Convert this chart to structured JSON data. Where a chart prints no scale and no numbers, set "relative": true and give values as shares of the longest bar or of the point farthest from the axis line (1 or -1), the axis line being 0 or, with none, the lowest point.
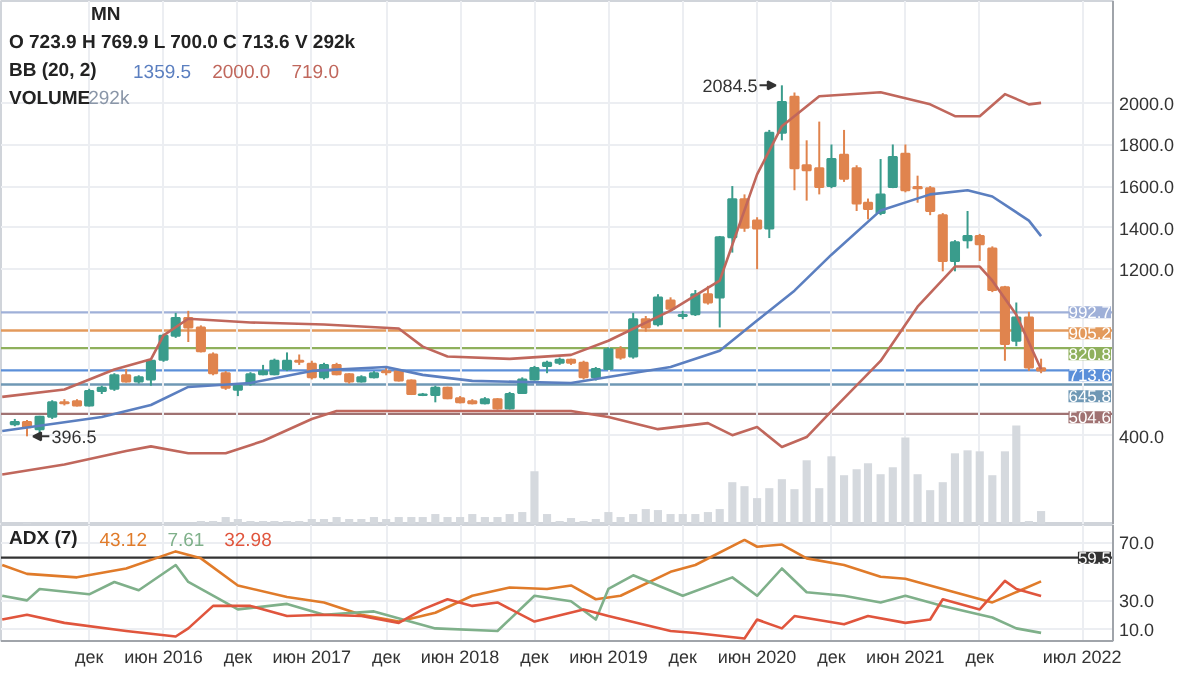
{
  "chart_data": [
    {
      "type": "candlestick",
      "tick_labels": "y",
      "grid": true,
      "annotations": [
        "MN",
        "O 723.9 H 769.9 L 700.0 C 713.6 V 292k",
        "BB (20, 2)",
        "1359.5",
        "2000.0",
        "719.0",
        {
          "text": "2084.5",
          "x": "2020-08",
          "y": 2084.5
        },
        {
          "text": "396.5",
          "x": "2015-07",
          "y": 396.5
        }
      ],
      "x": [
        "2015-06",
        "2015-07",
        "2015-08",
        "2015-09",
        "2015-10",
        "2015-11",
        "2015-12",
        "2016-01",
        "2016-02",
        "2016-03",
        "2016-04",
        "2016-05",
        "2016-06",
        "2016-07",
        "2016-08",
        "2016-09",
        "2016-10",
        "2016-11",
        "2016-12",
        "2017-01",
        "2017-02",
        "2017-03",
        "2017-04",
        "2017-05",
        "2017-06",
        "2017-07",
        "2017-08",
        "2017-09",
        "2017-10",
        "2017-11",
        "2017-12",
        "2018-01",
        "2018-02",
        "2018-03",
        "2018-04",
        "2018-05",
        "2018-06",
        "2018-07",
        "2018-08",
        "2018-09",
        "2018-10",
        "2018-11",
        "2018-12",
        "2019-01",
        "2019-02",
        "2019-03",
        "2019-04",
        "2019-05",
        "2019-06",
        "2019-07",
        "2019-08",
        "2019-09",
        "2019-10",
        "2019-11",
        "2019-12",
        "2020-01",
        "2020-02",
        "2020-03",
        "2020-04",
        "2020-05",
        "2020-06",
        "2020-07",
        "2020-08",
        "2020-09",
        "2020-10",
        "2020-11",
        "2020-12",
        "2021-01",
        "2021-02",
        "2021-03",
        "2021-04",
        "2021-05",
        "2021-06",
        "2021-07",
        "2021-08",
        "2021-09",
        "2021-10",
        "2021-11",
        "2021-12",
        "2022-01",
        "2022-02",
        "2022-03",
        "2022-04",
        "2022-05"
      ],
      "ohlc": [
        [
          455,
          480,
          445,
          465
        ],
        [
          465,
          475,
          396.5,
          440
        ],
        [
          430,
          495,
          410,
          490
        ],
        [
          490,
          570,
          480,
          560
        ],
        [
          560,
          575,
          545,
          555
        ],
        [
          565,
          575,
          540,
          545
        ],
        [
          545,
          625,
          540,
          615
        ],
        [
          615,
          640,
          600,
          630
        ],
        [
          625,
          700,
          615,
          690
        ],
        [
          690,
          720,
          655,
          660
        ],
        [
          660,
          690,
          650,
          680
        ],
        [
          670,
          770,
          640,
          760
        ],
        [
          765,
          890,
          755,
          880
        ],
        [
          880,
          990,
          870,
          965
        ],
        [
          965,
          1000,
          850,
          920
        ],
        [
          920,
          930,
          800,
          805
        ],
        [
          790,
          800,
          690,
          700
        ],
        [
          700,
          710,
          620,
          630
        ],
        [
          620,
          650,
          590,
          640
        ],
        [
          650,
          705,
          640,
          695
        ],
        [
          695,
          740,
          690,
          710
        ],
        [
          695,
          770,
          690,
          760
        ],
        [
          720,
          800,
          710,
          760
        ],
        [
          760,
          790,
          740,
          755
        ],
        [
          745,
          760,
          670,
          680
        ],
        [
          680,
          750,
          670,
          740
        ],
        [
          740,
          750,
          690,
          695
        ],
        [
          695,
          700,
          650,
          660
        ],
        [
          660,
          690,
          655,
          680
        ],
        [
          680,
          710,
          675,
          700
        ],
        [
          710,
          730,
          690,
          705
        ],
        [
          710,
          715,
          660,
          665
        ],
        [
          665,
          670,
          595,
          600
        ],
        [
          595,
          605,
          590,
          598
        ],
        [
          595,
          640,
          560,
          630
        ],
        [
          630,
          635,
          575,
          580
        ],
        [
          580,
          590,
          555,
          560
        ],
        [
          565,
          575,
          550,
          555
        ],
        [
          555,
          585,
          550,
          575
        ],
        [
          575,
          580,
          525,
          530
        ],
        [
          530,
          610,
          525,
          600
        ],
        [
          605,
          680,
          600,
          670
        ],
        [
          670,
          735,
          665,
          725
        ],
        [
          735,
          760,
          700,
          750
        ],
        [
          750,
          775,
          740,
          765
        ],
        [
          765,
          770,
          740,
          750
        ],
        [
          750,
          760,
          670,
          680
        ],
        [
          680,
          730,
          665,
          720
        ],
        [
          720,
          825,
          715,
          815
        ],
        [
          815,
          830,
          765,
          775
        ],
        [
          780,
          990,
          770,
          960
        ],
        [
          960,
          975,
          900,
          920
        ],
        [
          936,
          1080,
          925,
          1064
        ],
        [
          1050,
          1065,
          1000,
          1010
        ],
        [
          975,
          1000,
          960,
          980
        ],
        [
          984,
          1100,
          975,
          1080
        ],
        [
          1080,
          1120,
          1030,
          1040
        ],
        [
          1064,
          1360,
          920,
          1354
        ],
        [
          1354,
          1600,
          1280,
          1537
        ],
        [
          1537,
          1560,
          1380,
          1400
        ],
        [
          1434,
          1450,
          1200,
          1396
        ],
        [
          1396,
          1870,
          1350,
          1856
        ],
        [
          1856,
          2084.5,
          1820,
          2004
        ],
        [
          2030,
          2050,
          1580,
          1686
        ],
        [
          1700,
          1820,
          1530,
          1676
        ],
        [
          1686,
          1910,
          1560,
          1596
        ],
        [
          1600,
          1800,
          1590,
          1730
        ],
        [
          1750,
          1870,
          1620,
          1635
        ],
        [
          1686,
          1700,
          1480,
          1516
        ],
        [
          1520,
          1540,
          1440,
          1490
        ],
        [
          1470,
          1730,
          1460,
          1560
        ],
        [
          1595,
          1800,
          1590,
          1740
        ],
        [
          1756,
          1800,
          1570,
          1580
        ],
        [
          1595,
          1650,
          1520,
          1590
        ],
        [
          1590,
          1600,
          1460,
          1480
        ],
        [
          1460,
          1470,
          1190,
          1240
        ],
        [
          1240,
          1340,
          1190,
          1330
        ],
        [
          1340,
          1480,
          1300,
          1360
        ],
        [
          1360,
          1370,
          1240,
          1320
        ],
        [
          1300,
          1310,
          1090,
          1100
        ],
        [
          1113,
          1120,
          760,
          840
        ],
        [
          856,
          1040,
          830,
          968
        ],
        [
          968,
          995,
          711,
          727
        ],
        [
          723.9,
          769.9,
          700.0,
          713.6
        ]
      ],
      "colors": [
        "#3a9c8c",
        "#e0844e",
        "#3a9c8c",
        "#3a9c8c",
        "#e0844e",
        "#e0844e",
        "#3a9c8c",
        "#3a9c8c",
        "#3a9c8c",
        "#e0844e",
        "#3a9c8c",
        "#3a9c8c",
        "#3a9c8c",
        "#3a9c8c",
        "#e0844e",
        "#e0844e",
        "#e0844e",
        "#e0844e",
        "#3a9c8c",
        "#3a9c8c",
        "#3a9c8c",
        "#3a9c8c",
        "#3a9c8c",
        "#e0844e",
        "#e0844e",
        "#3a9c8c",
        "#e0844e",
        "#e0844e",
        "#3a9c8c",
        "#3a9c8c",
        "#e0844e",
        "#e0844e",
        "#e0844e",
        "#3a9c8c",
        "#3a9c8c",
        "#e0844e",
        "#e0844e",
        "#e0844e",
        "#3a9c8c",
        "#e0844e",
        "#3a9c8c",
        "#3a9c8c",
        "#3a9c8c",
        "#3a9c8c",
        "#3a9c8c",
        "#e0844e",
        "#e0844e",
        "#3a9c8c",
        "#3a9c8c",
        "#e0844e",
        "#3a9c8c",
        "#e0844e",
        "#3a9c8c",
        "#e0844e",
        "#3a9c8c",
        "#3a9c8c",
        "#e0844e",
        "#3a9c8c",
        "#3a9c8c",
        "#e0844e",
        "#e0844e",
        "#3a9c8c",
        "#3a9c8c",
        "#e0844e",
        "#e0844e",
        "#e0844e",
        "#3a9c8c",
        "#e0844e",
        "#e0844e",
        "#e0844e",
        "#3a9c8c",
        "#3a9c8c",
        "#e0844e",
        "#e0844e",
        "#e0844e",
        "#e0844e",
        "#3a9c8c",
        "#3a9c8c",
        "#e0844e",
        "#e0844e",
        "#e0844e",
        "#3a9c8c",
        "#e0844e",
        "#e0844e"
      ],
      "series": [
        {
          "type": "line",
          "color": "#5b7fc0",
          "x": [
            "2015-05",
            "2016-01",
            "2016-05",
            "2016-08",
            "2017-01",
            "2017-06",
            "2017-12",
            "2018-03",
            "2018-07",
            "2019-03",
            "2019-06",
            "2019-11",
            "2020-03",
            "2020-06",
            "2020-09",
            "2020-12",
            "2021-04",
            "2021-08",
            "2021-11",
            "2022-01",
            "2022-04",
            "2022-05"
          ],
          "values": [
            422,
            489,
            547,
            634,
            653,
            711,
            730,
            692,
            663,
            653,
            682,
            730,
            808,
            953,
            1097,
            1270,
            1483,
            1560,
            1580,
            1550,
            1434,
            1359.5
          ]
        },
        {
          "type": "line",
          "color": "#c0675c",
          "x": [
            "2015-05",
            "2015-10",
            "2016-02",
            "2016-05",
            "2016-06",
            "2016-08",
            "2017-01",
            "2017-07",
            "2018-01",
            "2018-03",
            "2018-05",
            "2018-10",
            "2019-03",
            "2019-06",
            "2019-11",
            "2020-03",
            "2020-06",
            "2020-08",
            "2020-11",
            "2021-04",
            "2021-08",
            "2021-10",
            "2021-12",
            "2022-02",
            "2022-04",
            "2022-05"
          ],
          "values": [
            586,
            622,
            718,
            767,
            882,
            962,
            944,
            934,
            915,
            828,
            780,
            769,
            788,
            856,
            1001,
            1145,
            1656,
            1888,
            2032,
            2051,
            1993,
            1936,
            1936,
            2042,
            1993,
            2000
          ]
        },
        {
          "type": "line",
          "color": "#c0675c",
          "x": [
            "2015-05",
            "2015-10",
            "2016-03",
            "2016-05",
            "2016-08",
            "2016-11",
            "2017-02",
            "2017-06",
            "2017-08",
            "2019-03",
            "2019-06",
            "2019-10",
            "2020-02",
            "2020-04",
            "2020-06",
            "2020-08",
            "2020-10",
            "2020-12",
            "2021-04",
            "2021-07",
            "2021-10",
            "2021-12",
            "2022-01",
            "2022-03",
            "2022-05"
          ],
          "values": [
            213,
            261,
            326,
            348,
            315,
            315,
            374,
            480,
            518,
            518,
            489,
            431,
            460,
            402,
            441,
            345,
            393,
            518,
            759,
            1020,
            1213,
            1213,
            1145,
            981,
            719
          ]
        }
      ],
      "xlim": [
        "2015-04-28",
        "2022-10-25"
      ],
      "xticks": [
        {
          "value": "2015-12",
          "label": null
        },
        {
          "value": "2016-06",
          "label": null
        },
        {
          "value": "2016-12",
          "label": null
        },
        {
          "value": "2017-06",
          "label": null
        },
        {
          "value": "2017-12",
          "label": null
        },
        {
          "value": "2018-06",
          "label": null
        },
        {
          "value": "2018-12",
          "label": null
        },
        {
          "value": "2019-06",
          "label": null
        },
        {
          "value": "2019-12",
          "label": null
        },
        {
          "value": "2020-06",
          "label": null
        },
        {
          "value": "2020-12",
          "label": null
        },
        {
          "value": "2021-06",
          "label": null
        },
        {
          "value": "2021-12",
          "label": null
        },
        {
          "value": "2022-08-10",
          "label": null
        }
      ],
      "ylim": [
        -30,
        2490
      ],
      "yticks": [
        {
          "value": 400,
          "label": "400.0"
        },
        {
          "value": 1200,
          "label": "1200.0"
        },
        {
          "value": 1400,
          "label": "1400.0"
        },
        {
          "value": 1600,
          "label": "1600.0"
        },
        {
          "value": 1800,
          "label": "1800.0"
        },
        {
          "value": 2000,
          "label": "2000.0"
        }
      ],
      "ref_lines": [
        {
          "axis": "y",
          "value": 992.7,
          "label": "992.7",
          "color": "#9fb0d8"
        },
        {
          "axis": "y",
          "value": 905.2,
          "label": "905.2",
          "color": "#e39a5c"
        },
        {
          "axis": "y",
          "value": 820.8,
          "label": "820.8",
          "color": "#8fb05c"
        },
        {
          "axis": "y",
          "value": 713.6,
          "label": "713.6",
          "color": "#5b8fd9"
        },
        {
          "axis": "y",
          "value": 645.8,
          "label": "645.8",
          "color": "#6f98b5"
        },
        {
          "axis": "y",
          "value": 504.6,
          "label": "504.6",
          "color": "#a07272"
        }
      ]
    },
    {
      "type": "bar",
      "relative": true,
      "color": "#d5d9de",
      "tick_labels": false,
      "annotations": [
        "VOLUME",
        "292k"
      ],
      "x": [
        "2015-07",
        "2015-08",
        "2015-09",
        "2015-10",
        "2015-11",
        "2015-12",
        "2016-01",
        "2016-02",
        "2016-03",
        "2016-04",
        "2016-05",
        "2016-06",
        "2016-07",
        "2016-08",
        "2016-09",
        "2016-10",
        "2016-11",
        "2016-12",
        "2017-01",
        "2017-02",
        "2017-03",
        "2017-04",
        "2017-05",
        "2017-06",
        "2017-07",
        "2017-08",
        "2017-09",
        "2017-10",
        "2017-11",
        "2017-12",
        "2018-01",
        "2018-02",
        "2018-03",
        "2018-04",
        "2018-05",
        "2018-06",
        "2018-07",
        "2018-08",
        "2018-09",
        "2018-10",
        "2018-11",
        "2018-12",
        "2019-01",
        "2019-02",
        "2019-03",
        "2019-04",
        "2019-05",
        "2019-06",
        "2019-07",
        "2019-08",
        "2019-09",
        "2019-10",
        "2019-11",
        "2019-12",
        "2020-01",
        "2020-02",
        "2020-03",
        "2020-04",
        "2020-05",
        "2020-06",
        "2020-07",
        "2020-08",
        "2020-09",
        "2020-10",
        "2020-11",
        "2020-12",
        "2021-01",
        "2021-02",
        "2021-03",
        "2021-04",
        "2021-05",
        "2021-06",
        "2021-07",
        "2021-08",
        "2021-09",
        "2021-10",
        "2021-11",
        "2021-12",
        "2022-01",
        "2022-02",
        "2022-03",
        "2022-04",
        "2022-05"
      ],
      "values": [
        0.02,
        null,
        null,
        null,
        null,
        null,
        null,
        null,
        null,
        null,
        null,
        null,
        null,
        null,
        0.04,
        0.04,
        0.08,
        0.06,
        0.04,
        0.04,
        0.04,
        0.04,
        0.04,
        0.06,
        0.06,
        0.08,
        0.06,
        0.06,
        0.08,
        0.06,
        0.08,
        0.08,
        0.08,
        0.11,
        0.08,
        0.08,
        0.11,
        0.08,
        0.08,
        0.11,
        0.13,
        0.54,
        0.11,
        0.04,
        0.07,
        0.04,
        0.06,
        0.13,
        0.08,
        0.11,
        0.16,
        0.15,
        0.11,
        0.11,
        0.11,
        0.13,
        0.16,
        0.43,
        0.39,
        0.27,
        0.37,
        0.46,
        0.36,
        0.65,
        0.37,
        0.69,
        0.5,
        0.56,
        0.62,
        0.51,
        0.58,
        0.88,
        0.51,
        0.35,
        0.43,
        0.72,
        0.75,
        0.74,
        0.5,
        0.74,
        1,
        0.04,
        0.14
      ],
      "xlim": [
        "2015-04-28",
        "2022-10-25"
      ],
      "xticks": [
        {
          "value": "2015-12",
          "label": null
        },
        {
          "value": "2016-06",
          "label": null
        },
        {
          "value": "2016-12",
          "label": null
        },
        {
          "value": "2017-06",
          "label": null
        },
        {
          "value": "2017-12",
          "label": null
        },
        {
          "value": "2018-06",
          "label": null
        },
        {
          "value": "2018-12",
          "label": null
        },
        {
          "value": "2019-06",
          "label": null
        },
        {
          "value": "2019-12",
          "label": null
        },
        {
          "value": "2020-06",
          "label": null
        },
        {
          "value": "2020-12",
          "label": null
        },
        {
          "value": "2021-06",
          "label": null
        },
        {
          "value": "2021-12",
          "label": null
        },
        {
          "value": "2022-08-10",
          "label": null
        }
      ]
    },
    {
      "type": "line",
      "grid": true,
      "annotations": [
        "ADX (7)",
        "43.12",
        "7.61",
        "32.98"
      ],
      "series": [
        {
          "color": "#e07b2a",
          "x": [
            "2015-05",
            "2015-07",
            "2015-11",
            "2016-03",
            "2016-07",
            "2016-09",
            "2016-12",
            "2017-04",
            "2017-07",
            "2017-10",
            "2018-01",
            "2018-04",
            "2018-07",
            "2018-10",
            "2019-01",
            "2019-03",
            "2019-05",
            "2019-07",
            "2019-11",
            "2020-01",
            "2020-05",
            "2020-06",
            "2020-08",
            "2020-10",
            "2021-01",
            "2021-04",
            "2021-06",
            "2021-09",
            "2021-11",
            "2022-01",
            "2022-05"
          ],
          "values": [
            54.4,
            48.3,
            45.9,
            52,
            63.8,
            59,
            40.3,
            32.3,
            28.6,
            20.1,
            15.4,
            21.5,
            33.2,
            38.9,
            37.9,
            40.3,
            30.8,
            33.2,
            49.7,
            54.4,
            71.7,
            67,
            68.5,
            59,
            54.4,
            46.3,
            44.9,
            37.9,
            33.2,
            28.6,
            43.12
          ]
        },
        {
          "color": "#7fb08a",
          "x": [
            "2015-05",
            "2015-07",
            "2015-08",
            "2015-12",
            "2016-02",
            "2016-04",
            "2016-07",
            "2016-08",
            "2016-12",
            "2017-04",
            "2017-07",
            "2017-11",
            "2018-04",
            "2018-09",
            "2018-12",
            "2019-03",
            "2019-05",
            "2019-06",
            "2019-08",
            "2019-12",
            "2020-04",
            "2020-06",
            "2020-08",
            "2020-10",
            "2021-01",
            "2021-04",
            "2021-06",
            "2021-09",
            "2022-01",
            "2022-03",
            "2022-05"
          ],
          "values": [
            33.2,
            30,
            37.9,
            34.2,
            42.7,
            37,
            54.4,
            42.7,
            23.8,
            27.6,
            20.1,
            22.4,
            10.7,
            8.9,
            33.2,
            29.4,
            16.8,
            37.9,
            47.3,
            33.2,
            45.9,
            33.2,
            52,
            35.6,
            33.2,
            28.6,
            33.2,
            26.2,
            18.2,
            10.7,
            7.61
          ]
        },
        {
          "color": "#e0553d",
          "x": [
            "2015-05",
            "2015-07",
            "2015-10",
            "2016-03",
            "2016-07",
            "2016-08",
            "2016-10",
            "2017-01",
            "2017-04",
            "2017-07",
            "2017-10",
            "2018-01",
            "2018-03",
            "2018-05",
            "2018-07",
            "2018-09",
            "2018-12",
            "2019-04",
            "2019-06",
            "2019-11",
            "2020-01",
            "2020-05",
            "2020-06",
            "2020-08",
            "2020-09",
            "2021-01",
            "2021-03",
            "2021-06",
            "2021-08",
            "2021-09",
            "2021-12",
            "2022-02",
            "2022-03",
            "2022-05"
          ],
          "values": [
            16.8,
            20.1,
            14.5,
            8.9,
            5.1,
            10.7,
            26.2,
            26.2,
            19.2,
            20.1,
            19.2,
            14.5,
            23.8,
            30.8,
            26.2,
            28.6,
            15.4,
            23.8,
            19.2,
            8.9,
            7.5,
            3.7,
            16.8,
            10.7,
            19.2,
            13.5,
            19.2,
            14.5,
            16.8,
            30.8,
            23.8,
            43.5,
            37.9,
            32.98
          ]
        }
      ],
      "xlim": [
        "2015-04-28",
        "2022-10-25"
      ],
      "xticks": [
        {
          "value": "2015-12",
          "label": "дек"
        },
        {
          "value": "2016-06",
          "label": "июн 2016"
        },
        {
          "value": "2016-12",
          "label": "дек"
        },
        {
          "value": "2017-06",
          "label": "июн 2017"
        },
        {
          "value": "2017-12",
          "label": "дек"
        },
        {
          "value": "2018-06",
          "label": "июн 2018"
        },
        {
          "value": "2018-12",
          "label": "дек"
        },
        {
          "value": "2019-06",
          "label": "июн 2019"
        },
        {
          "value": "2019-12",
          "label": "дек"
        },
        {
          "value": "2020-06",
          "label": "июн 2020"
        },
        {
          "value": "2020-12",
          "label": "дек"
        },
        {
          "value": "2021-06",
          "label": "июн 2021"
        },
        {
          "value": "2021-12",
          "label": "дек"
        },
        {
          "value": "2022-08-10",
          "label": "июл 2022"
        }
      ],
      "ylim": [
        2,
        82
      ],
      "yticks": [
        {
          "value": 10,
          "label": "10.0"
        },
        {
          "value": 30,
          "label": "30.0"
        },
        {
          "value": 70,
          "label": "70.0"
        }
      ],
      "ref_lines": [
        {
          "axis": "y",
          "value": 59.5,
          "label": "59.5",
          "color": "#333333"
        }
      ]
    }
  ]
}
